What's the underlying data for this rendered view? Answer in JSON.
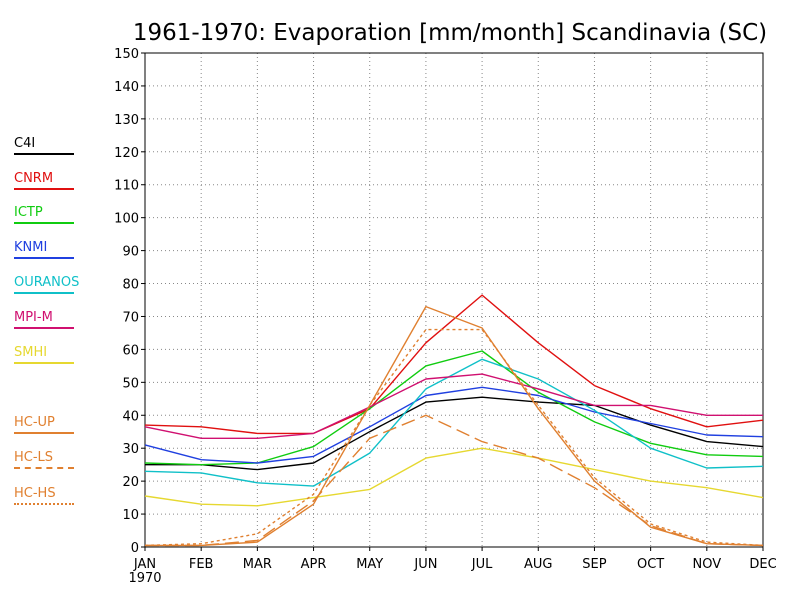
{
  "chart_data": {
    "type": "line",
    "title": "1961-1970: Evaporation [mm/month] Scandinavia (SC)",
    "categories": [
      "JAN",
      "FEB",
      "MAR",
      "APR",
      "MAY",
      "JUN",
      "JUL",
      "AUG",
      "SEP",
      "OCT",
      "NOV",
      "DEC"
    ],
    "first_category_sublabel": "1970",
    "ylim": [
      0,
      150
    ],
    "yticks": [
      0,
      10,
      20,
      30,
      40,
      50,
      60,
      70,
      80,
      90,
      100,
      110,
      120,
      130,
      140,
      150
    ],
    "grid": true,
    "legend_position": "left",
    "series": [
      {
        "name": "C4I",
        "color": "#000000",
        "dash": "solid",
        "values": [
          25,
          25,
          23.5,
          25.5,
          35,
          44,
          45.5,
          44,
          43,
          37,
          32,
          30.5
        ]
      },
      {
        "name": "CNRM",
        "color": "#e01010",
        "dash": "solid",
        "values": [
          37,
          36.5,
          34.5,
          34.5,
          42,
          62,
          76.5,
          62,
          49,
          42,
          36.5,
          38.5
        ]
      },
      {
        "name": "ICTP",
        "color": "#10cc10",
        "dash": "solid",
        "values": [
          25.5,
          25,
          25.5,
          30.5,
          42,
          55,
          59.5,
          47,
          38,
          31.5,
          28,
          27.5
        ]
      },
      {
        "name": "KNMI",
        "color": "#2040e0",
        "dash": "solid",
        "values": [
          31,
          26.5,
          25.5,
          27.5,
          36.5,
          46,
          48.5,
          46,
          41,
          37.5,
          34,
          33.5
        ]
      },
      {
        "name": "OURANOS",
        "color": "#10c0c8",
        "dash": "solid",
        "values": [
          23,
          22.5,
          19.5,
          18.5,
          28.5,
          48,
          57,
          51,
          41.5,
          30,
          24,
          24.5
        ]
      },
      {
        "name": "MPI-M",
        "color": "#d01070",
        "dash": "solid",
        "values": [
          36.5,
          33,
          33,
          34.5,
          42.5,
          51,
          52.5,
          48,
          43,
          43,
          40,
          40
        ]
      },
      {
        "name": "SMHI",
        "color": "#e6d830",
        "dash": "solid",
        "values": [
          15.5,
          13,
          12.5,
          15,
          17.5,
          27,
          30,
          27,
          23.5,
          20,
          18,
          15
        ]
      },
      {
        "name": "HC-UP",
        "color": "#e08030",
        "dash": "solid",
        "values": [
          0.5,
          0.5,
          1.5,
          13,
          43,
          73,
          66.5,
          42,
          20,
          6,
          1,
          0.5
        ]
      },
      {
        "name": "HC-LS",
        "color": "#e08030",
        "dash": "long",
        "values": [
          0.5,
          0.5,
          2,
          14,
          33,
          40,
          32,
          27,
          18,
          6.5,
          1,
          0.5
        ]
      },
      {
        "name": "HC-HS",
        "color": "#e08030",
        "dash": "short",
        "values": [
          0.5,
          1,
          4,
          16,
          43,
          66,
          66,
          43,
          21,
          7,
          1.5,
          0.5
        ]
      }
    ]
  }
}
